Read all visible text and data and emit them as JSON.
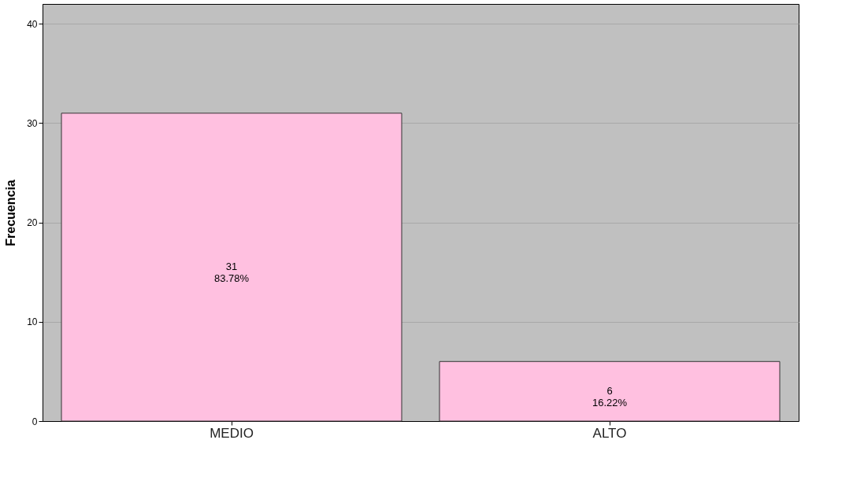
{
  "chart_data": {
    "type": "bar",
    "ylabel": "Frecuencia",
    "categories": [
      "MEDIO",
      "ALTO"
    ],
    "values": [
      31,
      6
    ],
    "color": "#ffc0e0",
    "value_labels": [
      "31\n83.78%",
      "6\n16.22%"
    ],
    "ylim": [
      0,
      42
    ],
    "yticks": [
      0,
      10,
      20,
      30,
      40
    ],
    "grid": "y"
  }
}
